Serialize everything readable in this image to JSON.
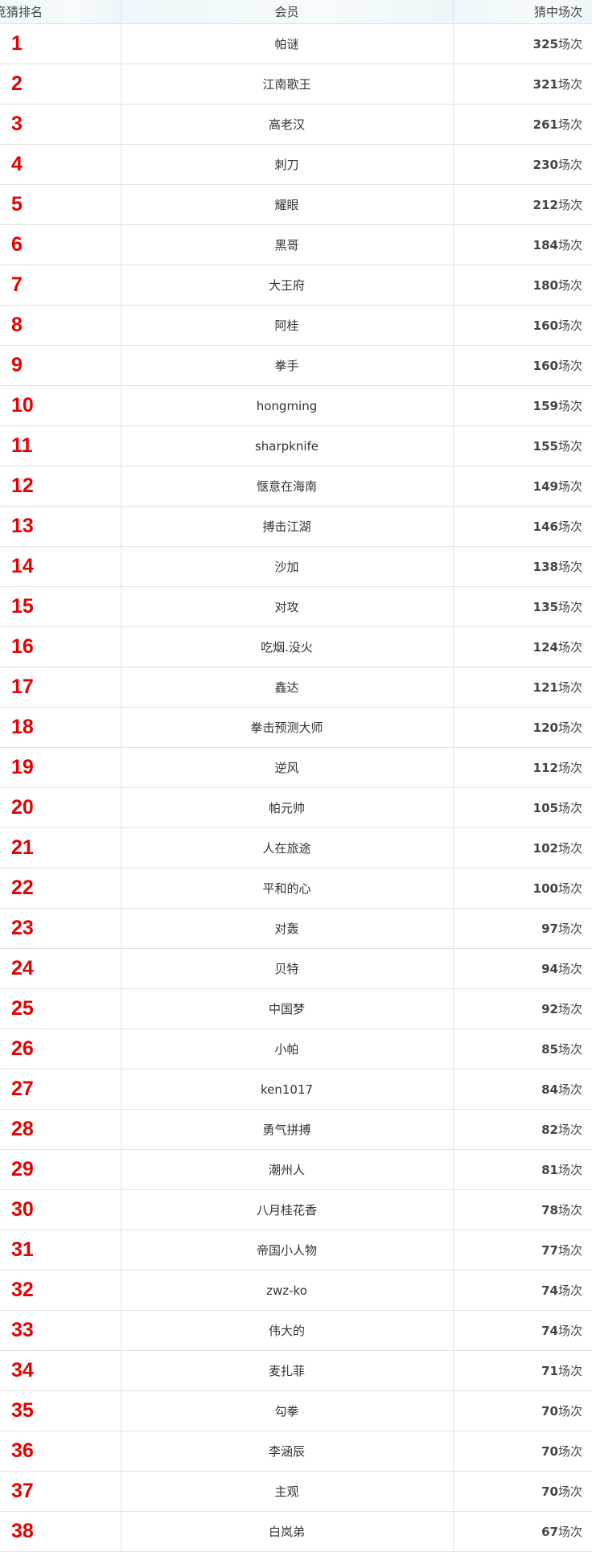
{
  "header": {
    "rank": "竞猜排名",
    "member": "会员",
    "hits": "猜中场次"
  },
  "unit": "场次",
  "colors": {
    "rank": "#e60000",
    "header_bg": "#eef7fb"
  },
  "rows": [
    {
      "rank": "1",
      "name": "帕谜",
      "hits": "325"
    },
    {
      "rank": "2",
      "name": "江南歌王",
      "hits": "321"
    },
    {
      "rank": "3",
      "name": "高老汉",
      "hits": "261"
    },
    {
      "rank": "4",
      "name": "刺刀",
      "hits": "230"
    },
    {
      "rank": "5",
      "name": "耀眼",
      "hits": "212"
    },
    {
      "rank": "6",
      "name": "黑哥",
      "hits": "184"
    },
    {
      "rank": "7",
      "name": "大王府",
      "hits": "180"
    },
    {
      "rank": "8",
      "name": "阿桂",
      "hits": "160"
    },
    {
      "rank": "9",
      "name": "拳手",
      "hits": "160"
    },
    {
      "rank": "10",
      "name": "hongming",
      "hits": "159"
    },
    {
      "rank": "11",
      "name": "sharpknife",
      "hits": "155"
    },
    {
      "rank": "12",
      "name": "惬意在海南",
      "hits": "149"
    },
    {
      "rank": "13",
      "name": "搏击江湖",
      "hits": "146"
    },
    {
      "rank": "14",
      "name": "沙加",
      "hits": "138"
    },
    {
      "rank": "15",
      "name": "对攻",
      "hits": "135"
    },
    {
      "rank": "16",
      "name": "吃烟.没火",
      "hits": "124"
    },
    {
      "rank": "17",
      "name": "鑫达",
      "hits": "121"
    },
    {
      "rank": "18",
      "name": "拳击预测大师",
      "hits": "120"
    },
    {
      "rank": "19",
      "name": "逆风",
      "hits": "112"
    },
    {
      "rank": "20",
      "name": "帕元帅",
      "hits": "105"
    },
    {
      "rank": "21",
      "name": "人在旅途",
      "hits": "102"
    },
    {
      "rank": "22",
      "name": "平和的心",
      "hits": "100"
    },
    {
      "rank": "23",
      "name": "对轰",
      "hits": "97"
    },
    {
      "rank": "24",
      "name": "贝特",
      "hits": "94"
    },
    {
      "rank": "25",
      "name": "中国梦",
      "hits": "92"
    },
    {
      "rank": "26",
      "name": "小帕",
      "hits": "85"
    },
    {
      "rank": "27",
      "name": "ken1017",
      "hits": "84"
    },
    {
      "rank": "28",
      "name": "勇气拼搏",
      "hits": "82"
    },
    {
      "rank": "29",
      "name": "潮州人",
      "hits": "81"
    },
    {
      "rank": "30",
      "name": "八月桂花香",
      "hits": "78"
    },
    {
      "rank": "31",
      "name": "帝国小人物",
      "hits": "77"
    },
    {
      "rank": "32",
      "name": "zwz-ko",
      "hits": "74"
    },
    {
      "rank": "33",
      "name": "伟大的",
      "hits": "74"
    },
    {
      "rank": "34",
      "name": "麦扎菲",
      "hits": "71"
    },
    {
      "rank": "35",
      "name": "勾拳",
      "hits": "70"
    },
    {
      "rank": "36",
      "name": "李涵辰",
      "hits": "70"
    },
    {
      "rank": "37",
      "name": "主观",
      "hits": "70"
    },
    {
      "rank": "38",
      "name": "白岚弟",
      "hits": "67"
    }
  ]
}
